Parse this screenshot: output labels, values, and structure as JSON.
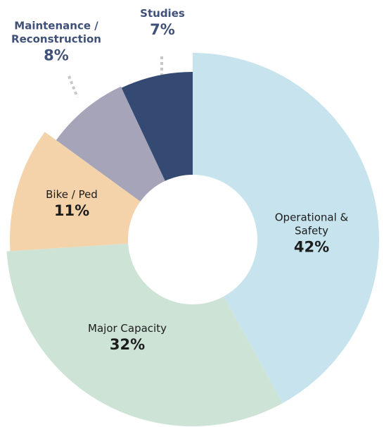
{
  "chart_data": {
    "type": "donut",
    "categories": [
      "Operational & Safety",
      "Major Capacity",
      "Bike / Ped",
      "Maintenance / Reconstruction",
      "Studies"
    ],
    "values": [
      42,
      32,
      11,
      8,
      7
    ],
    "value_labels": [
      "42%",
      "32%",
      "11%",
      "8%",
      "7%"
    ],
    "colors": [
      "#c6e3ee",
      "#cde3d5",
      "#f4d3aa",
      "#a5a4b9",
      "#344a72"
    ]
  }
}
